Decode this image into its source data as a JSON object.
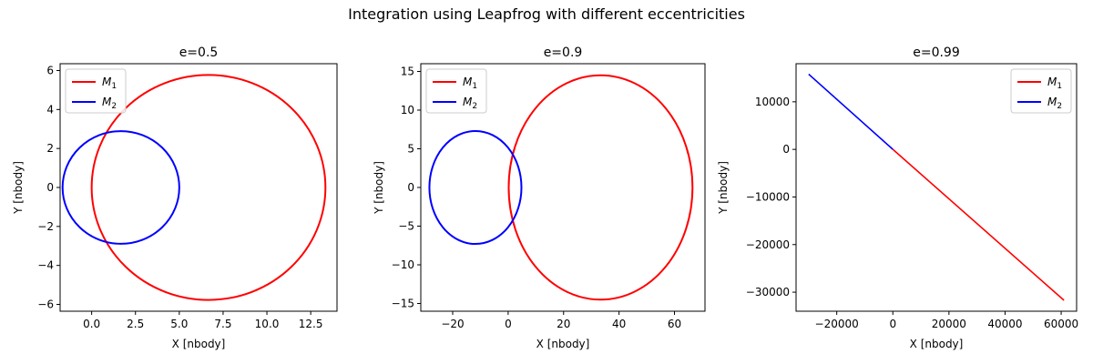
{
  "figure": {
    "title": "Integration using Leapfrog with different eccentricities"
  },
  "chart_data": [
    {
      "type": "line",
      "title": "e=0.5",
      "xlabel": "X [nbody]",
      "ylabel": "Y [nbody]",
      "xlim": [
        -1.8,
        14.0
      ],
      "ylim": [
        -6.35,
        6.35
      ],
      "xticks": [
        0.0,
        2.5,
        5.0,
        7.5,
        10.0,
        12.5
      ],
      "xtick_labels": [
        "0.0",
        "2.5",
        "5.0",
        "7.5",
        "10.0",
        "12.5"
      ],
      "yticks": [
        -6,
        -4,
        -2,
        0,
        2,
        4,
        6
      ],
      "ytick_labels": [
        "−6",
        "−4",
        "−2",
        "0",
        "2",
        "4",
        "6"
      ],
      "grid": false,
      "legend_position": "upper-left",
      "series": [
        {
          "name": "M",
          "subscript": "1",
          "color": "#ff0000",
          "shape": "ellipse",
          "ellipse": {
            "cx": 6.67,
            "cy": 0.0,
            "rx": 6.67,
            "ry": 5.77
          }
        },
        {
          "name": "M",
          "subscript": "2",
          "color": "#0000ff",
          "shape": "ellipse",
          "ellipse": {
            "cx": 1.67,
            "cy": 0.0,
            "rx": 3.33,
            "ry": 2.89
          }
        }
      ]
    },
    {
      "type": "line",
      "title": "e=0.9",
      "xlabel": "X [nbody]",
      "ylabel": "Y [nbody]",
      "xlim": [
        -31.5,
        71.0
      ],
      "ylim": [
        -16.0,
        16.0
      ],
      "xticks": [
        -20,
        0,
        20,
        40,
        60
      ],
      "xtick_labels": [
        "−20",
        "0",
        "20",
        "40",
        "60"
      ],
      "yticks": [
        -15,
        -10,
        -5,
        0,
        5,
        10,
        15
      ],
      "ytick_labels": [
        "−15",
        "−10",
        "−5",
        "0",
        "5",
        "10",
        "15"
      ],
      "grid": false,
      "legend_position": "upper-left",
      "series": [
        {
          "name": "M",
          "subscript": "1",
          "color": "#ff0000",
          "shape": "ellipse",
          "ellipse": {
            "cx": 33.35,
            "cy": 0.0,
            "rx": 33.15,
            "ry": 14.5
          }
        },
        {
          "name": "M",
          "subscript": "2",
          "color": "#0000ff",
          "shape": "ellipse",
          "ellipse": {
            "cx": -11.8,
            "cy": 0.0,
            "rx": 16.6,
            "ry": 7.3
          }
        }
      ]
    },
    {
      "type": "line",
      "title": "e=0.99",
      "xlabel": "X [nbody]",
      "ylabel": "Y [nbody]",
      "xlim": [
        -34500,
        65500
      ],
      "ylim": [
        -34000,
        18000
      ],
      "xticks": [
        -20000,
        0,
        20000,
        40000,
        60000
      ],
      "xtick_labels": [
        "−20000",
        "0",
        "20000",
        "40000",
        "60000"
      ],
      "yticks": [
        -30000,
        -20000,
        -10000,
        0,
        10000
      ],
      "ytick_labels": [
        "−30000",
        "−20000",
        "−10000",
        "0",
        "10000"
      ],
      "grid": false,
      "legend_position": "upper-right",
      "series": [
        {
          "name": "M",
          "subscript": "1",
          "color": "#ff0000",
          "shape": "segment",
          "x": [
            0,
            61000
          ],
          "y": [
            0,
            -31700
          ]
        },
        {
          "name": "M",
          "subscript": "2",
          "color": "#0000ff",
          "shape": "segment",
          "x": [
            -30000,
            0
          ],
          "y": [
            15800,
            0
          ]
        }
      ]
    }
  ]
}
